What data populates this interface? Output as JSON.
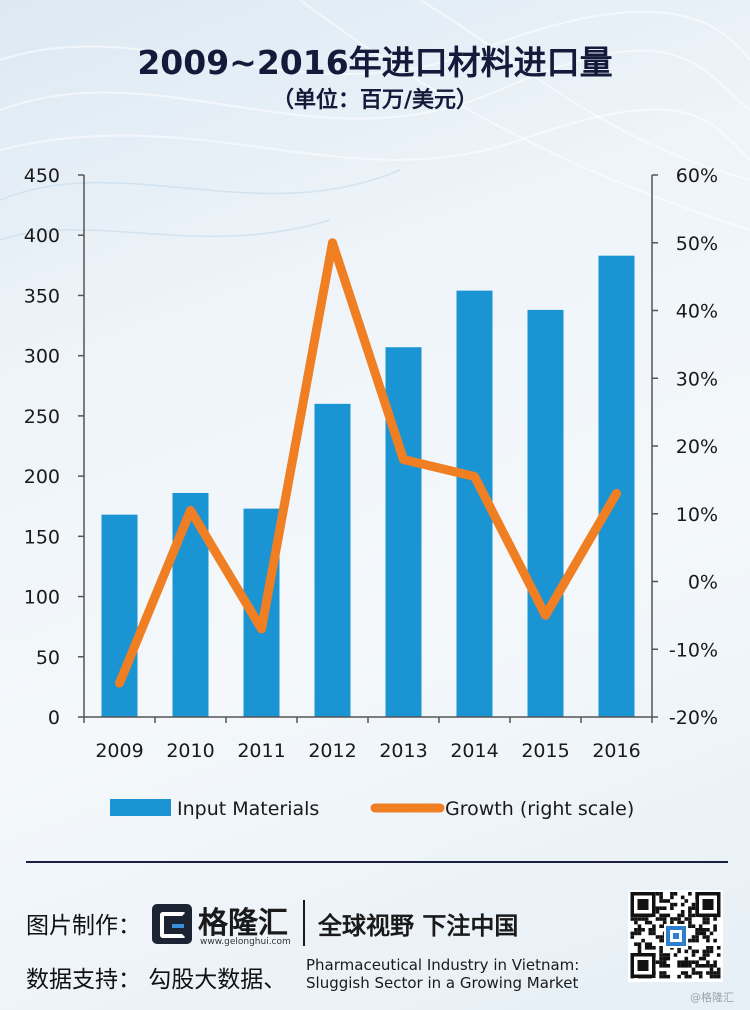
{
  "header": {
    "title": "2009~2016年进口材料进口量",
    "subtitle": "（单位：百万/美元）"
  },
  "chart_data": {
    "type": "bar",
    "categories": [
      "2009",
      "2010",
      "2011",
      "2012",
      "2013",
      "2014",
      "2015",
      "2016"
    ],
    "series": [
      {
        "name": "Input Materials",
        "type": "bar",
        "axis": "left",
        "color": "#1a94d2",
        "values": [
          168,
          186,
          173,
          260,
          307,
          354,
          338,
          383
        ]
      },
      {
        "name": "Growth (right scale)",
        "type": "line",
        "axis": "right",
        "color": "#f07f24",
        "values": [
          -15,
          10.5,
          -7,
          50,
          18,
          15.5,
          -5,
          13
        ]
      }
    ],
    "y_left": {
      "min": 0,
      "max": 450,
      "step": 50,
      "ticks": [
        "0",
        "50",
        "100",
        "150",
        "200",
        "250",
        "300",
        "350",
        "400",
        "450"
      ]
    },
    "y_right": {
      "min": -20,
      "max": 60,
      "step": 10,
      "ticks": [
        "-20%",
        "-10%",
        "0%",
        "10%",
        "20%",
        "30%",
        "40%",
        "50%",
        "60%"
      ]
    },
    "legend_position": "bottom",
    "grid": false
  },
  "footer": {
    "made_by_label": "图片制作：",
    "brand_name": "格隆汇",
    "brand_url": "www.gelonghui.com",
    "slogan": "全球视野 下注中国",
    "data_support_label": "数据支持：  勾股大数据、",
    "source_title_line1": "Pharmaceutical Industry in Vietnam:",
    "source_title_line2": "Sluggish Sector in a Growing Market",
    "watermark": "@格隆汇"
  }
}
